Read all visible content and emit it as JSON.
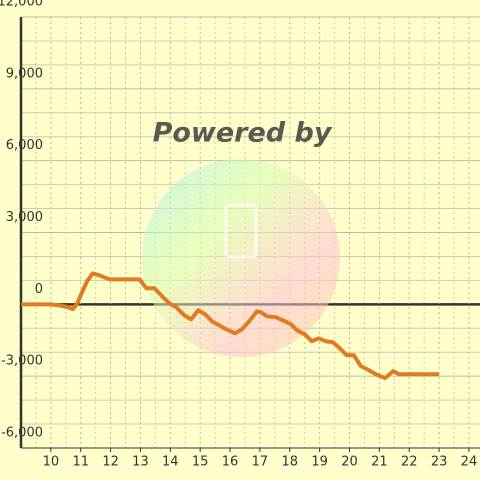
{
  "chart_data": {
    "type": "line",
    "watermark": "Powered by",
    "x": [
      9,
      10,
      10.3,
      10.53,
      10.73,
      10.87,
      11.07,
      11.23,
      11.4,
      11.63,
      11.97,
      12.97,
      13.2,
      13.47,
      13.73,
      13.97,
      14.2,
      14.47,
      14.7,
      14.93,
      15.17,
      15.4,
      15.63,
      15.87,
      16.17,
      16.4,
      16.64,
      16.9,
      17.03,
      17.24,
      17.54,
      17.77,
      18.04,
      18.24,
      18.5,
      18.74,
      18.97,
      19.2,
      19.44,
      19.67,
      19.9,
      20.14,
      20.38,
      20.65,
      20.88,
      21.19,
      21.46,
      21.66,
      23.0
    ],
    "series": [
      {
        "color": "#e07b20",
        "values": [
          0,
          0,
          -50,
          -100,
          -200,
          0,
          580,
          1000,
          1290,
          1210,
          1040,
          1040,
          670,
          670,
          330,
          40,
          -125,
          -460,
          -625,
          -250,
          -420,
          -710,
          -875,
          -1040,
          -1210,
          -1040,
          -710,
          -290,
          -330,
          -500,
          -540,
          -670,
          -830,
          -1080,
          -1250,
          -1540,
          -1420,
          -1540,
          -1580,
          -1830,
          -2120,
          -2120,
          -2580,
          -2750,
          -2920,
          -3080,
          -2790,
          -2920,
          -2920
        ]
      }
    ],
    "xlim": [
      9,
      24.37
    ],
    "xticks": [
      10,
      11,
      12,
      13,
      14,
      15,
      16,
      17,
      18,
      19,
      20,
      21,
      22,
      23,
      24
    ],
    "xminorticks": [
      9.5,
      10.5,
      11.5,
      12.5,
      13.5,
      14.5,
      15.5,
      16.5,
      17.5,
      18.5,
      19.5,
      20.5,
      21.5,
      22.5,
      23.5
    ],
    "ylim": [
      -6000,
      12000
    ],
    "yticks": [
      {
        "value": -6000,
        "label": "-6,000"
      },
      {
        "value": -3000,
        "label": "-3,000"
      },
      0,
      {
        "value": 3000,
        "label": "3,000"
      },
      {
        "value": 6000,
        "label": "6,000"
      },
      {
        "value": 9000,
        "label": "9,000"
      },
      {
        "value": 12000,
        "label": "12,000"
      }
    ],
    "yminorticks": [
      -5000,
      -4000,
      -2000,
      -1000,
      1000,
      2000,
      4000,
      5000,
      7000,
      8000,
      10000,
      11000
    ],
    "grid": true
  }
}
